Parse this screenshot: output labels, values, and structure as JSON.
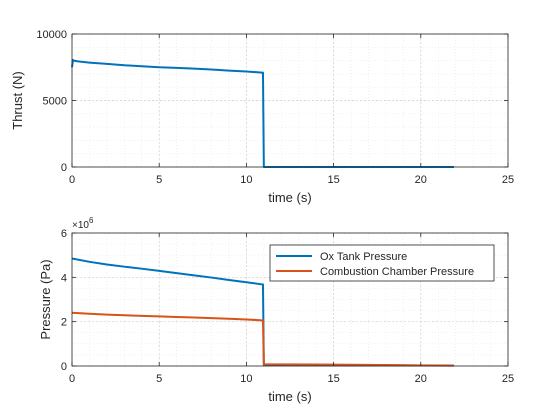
{
  "chart_data": [
    {
      "type": "line",
      "xlabel": "time (s)",
      "ylabel": "Thrust (N)",
      "xlim": [
        0,
        25
      ],
      "ylim": [
        0,
        10000
      ],
      "xticks": [
        0,
        5,
        10,
        15,
        20,
        25
      ],
      "xtick_labels": [
        "0",
        "5",
        "10",
        "15",
        "20",
        "25"
      ],
      "yticks": [
        0,
        5000,
        10000
      ],
      "ytick_labels": [
        "0",
        "5000",
        "10000"
      ],
      "grid": "major and minor, dotted",
      "legend": null,
      "series": [
        {
          "color": "#0072BD",
          "x": [
            0,
            0.05,
            0.1,
            0.3,
            0.6,
            1.0,
            2.0,
            3.0,
            4.0,
            5.0,
            6.0,
            7.0,
            8.0,
            9.0,
            10.0,
            10.9,
            10.95,
            11.0,
            12.0,
            14.0,
            16.0,
            18.0,
            20.0,
            21.9
          ],
          "y": [
            7500,
            8050,
            8000,
            7950,
            7900,
            7850,
            7750,
            7650,
            7580,
            7500,
            7450,
            7400,
            7330,
            7250,
            7180,
            7100,
            7100,
            0,
            0,
            0,
            0,
            0,
            0,
            0
          ]
        }
      ]
    },
    {
      "type": "line",
      "xlabel": "time (s)",
      "ylabel": "Pressure (Pa)",
      "y_exponent_label": "×10^6",
      "xlim": [
        0,
        25
      ],
      "ylim": [
        0,
        6000000
      ],
      "xticks": [
        0,
        5,
        10,
        15,
        20,
        25
      ],
      "xtick_labels": [
        "0",
        "5",
        "10",
        "15",
        "20",
        "25"
      ],
      "yticks": [
        0,
        2000000,
        4000000,
        6000000
      ],
      "ytick_labels": [
        "0",
        "2",
        "4",
        "6"
      ],
      "grid": "major and minor, dotted",
      "legend": "top-right",
      "series": [
        {
          "name": "Ox Tank Pressure",
          "color": "#0072BD",
          "x": [
            0,
            1,
            2,
            3,
            4,
            5,
            6,
            7,
            8,
            9,
            10,
            10.9,
            10.95,
            11.0,
            12,
            14,
            16,
            18,
            20,
            21.9
          ],
          "y": [
            4850000,
            4700000,
            4580000,
            4480000,
            4390000,
            4290000,
            4190000,
            4090000,
            3990000,
            3880000,
            3780000,
            3680000,
            3680000,
            40000,
            38000,
            34000,
            30000,
            26000,
            20000,
            15000
          ]
        },
        {
          "name": "Combustion Chamber Pressure",
          "color": "#D95319",
          "x": [
            0,
            1,
            2,
            3,
            4,
            5,
            6,
            7,
            8,
            9,
            10,
            10.9,
            10.95,
            11.0,
            12,
            14,
            16,
            18,
            20,
            21.9
          ],
          "y": [
            2400000,
            2360000,
            2320000,
            2290000,
            2260000,
            2240000,
            2210000,
            2190000,
            2160000,
            2130000,
            2100000,
            2060000,
            2060000,
            80000,
            75000,
            65000,
            55000,
            45000,
            30000,
            20000
          ]
        }
      ]
    }
  ]
}
